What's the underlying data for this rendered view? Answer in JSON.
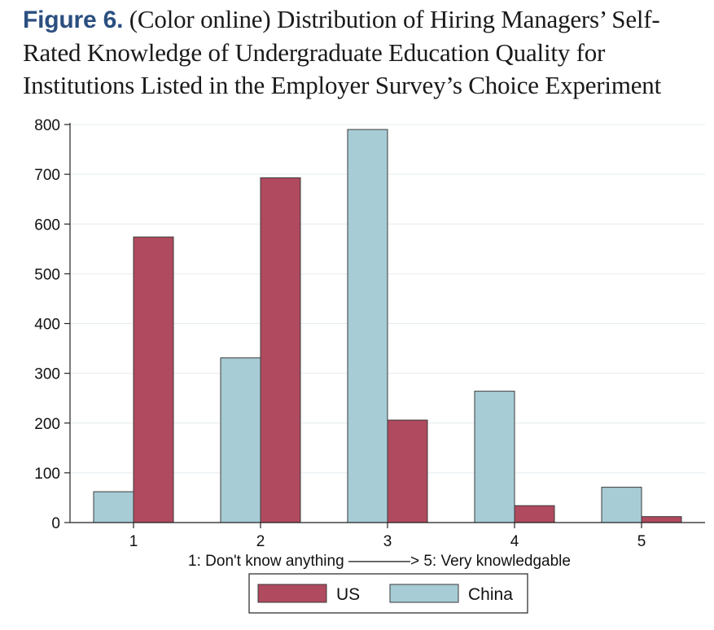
{
  "caption": {
    "label": "Figure 6.",
    "text": "(Color online) Distribution of Hiring Managers’ Self-Rated Knowledge of Undergraduate Education Quality for Institutions Listed in the Employer Survey’s Choice Experiment"
  },
  "chart_data": {
    "type": "bar",
    "categories": [
      "1",
      "2",
      "3",
      "4",
      "5"
    ],
    "series": [
      {
        "name": "China",
        "color": "#a7ccd6",
        "values": [
          62,
          331,
          790,
          264,
          71
        ]
      },
      {
        "name": "US",
        "color": "#b04a5e",
        "values": [
          574,
          693,
          206,
          34,
          12
        ]
      }
    ],
    "xlabel": "1: Don't know anything ————> 5: Very knowledgable",
    "ylabel": "",
    "ylim": [
      0,
      800
    ],
    "yticks": [
      0,
      100,
      200,
      300,
      400,
      500,
      600,
      700,
      800
    ],
    "grid": true,
    "legend": {
      "placement": "bottom",
      "entries": [
        {
          "label": "US",
          "color": "#b04a5e"
        },
        {
          "label": "China",
          "color": "#a7ccd6"
        }
      ]
    }
  }
}
